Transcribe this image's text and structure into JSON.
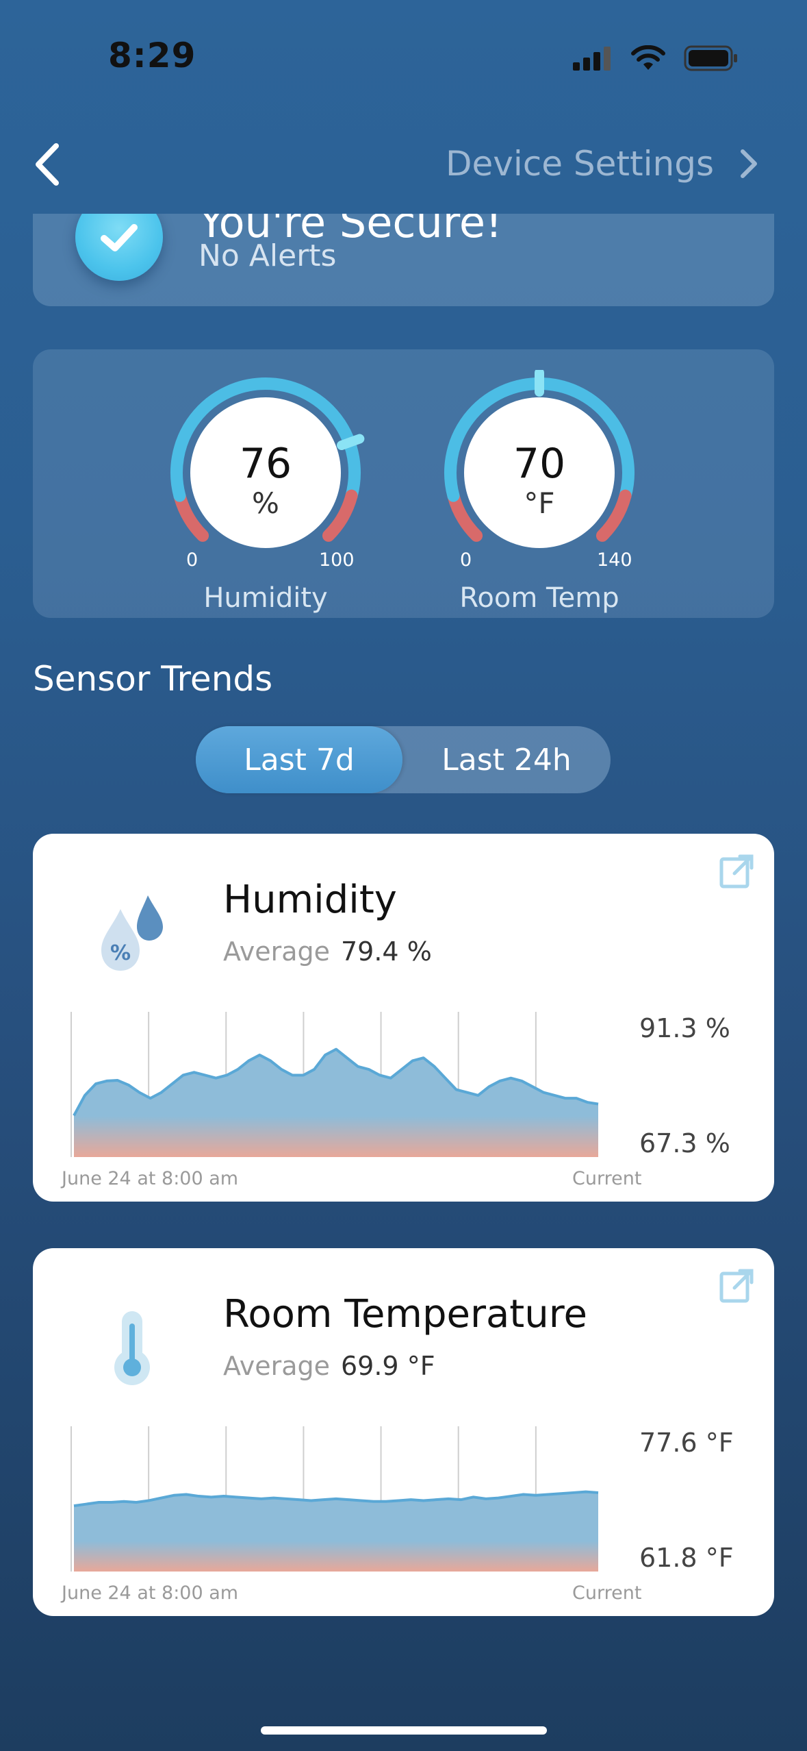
{
  "status_bar": {
    "time": "8:29"
  },
  "nav": {
    "title": "Device Settings"
  },
  "alert_card": {
    "title": "You're Secure!",
    "subtitle": "No Alerts"
  },
  "gauges": [
    {
      "value": "76",
      "unit": "%",
      "min": "0",
      "max": "100",
      "label": "Humidity",
      "fraction": 0.76
    },
    {
      "value": "70",
      "unit": "°F",
      "min": "0",
      "max": "140",
      "label": "Room Temp",
      "fraction": 0.5
    }
  ],
  "trends": {
    "title": "Sensor Trends",
    "tabs": [
      "Last 7d",
      "Last 24h"
    ],
    "selected_tab": "Last 7d"
  },
  "cards": [
    {
      "title": "Humidity",
      "average_label": "Average",
      "average_value": "79.4 %",
      "y_max_label": "91.3 %",
      "y_min_label": "67.3 %",
      "x_start_label": "June 24 at 8:00 am",
      "x_end_label": "Current",
      "icon": "humidity-drop-icon",
      "chart_data": {
        "type": "area",
        "ylim": [
          67.3,
          91.3
        ],
        "values": [
          74.5,
          78,
          80,
          80.5,
          80.6,
          79.8,
          78.5,
          77.5,
          78.5,
          80,
          81.5,
          82,
          81.5,
          81,
          81.5,
          82.5,
          84,
          85,
          84,
          82.5,
          81.5,
          81.5,
          82.5,
          85,
          86,
          84.5,
          83,
          82.5,
          81.5,
          81,
          82.5,
          84,
          84.5,
          83,
          81,
          79,
          78.5,
          78,
          79.5,
          80.5,
          81,
          80.5,
          79.5,
          78.5,
          78,
          77.5,
          77.5,
          76.8,
          76.5
        ]
      }
    },
    {
      "title": "Room Temperature",
      "average_label": "Average",
      "average_value": "69.9 °F",
      "y_max_label": "77.6 °F",
      "y_min_label": "61.8 °F",
      "x_start_label": "June 24 at 8:00 am",
      "x_end_label": "Current",
      "icon": "thermometer-icon",
      "chart_data": {
        "type": "area",
        "ylim": [
          61.8,
          77.6
        ],
        "values": [
          69.3,
          69.5,
          69.7,
          69.7,
          69.8,
          69.7,
          69.9,
          70.2,
          70.5,
          70.6,
          70.4,
          70.3,
          70.4,
          70.3,
          70.2,
          70.1,
          70.2,
          70.1,
          70.0,
          69.9,
          70.0,
          70.1,
          70.0,
          69.9,
          69.8,
          69.8,
          69.9,
          70.0,
          69.9,
          70.0,
          70.1,
          70.0,
          70.3,
          70.1,
          70.2,
          70.4,
          70.6,
          70.5,
          70.6,
          70.7,
          70.8,
          70.9,
          70.8
        ]
      }
    }
  ],
  "colors": {
    "accent": "#4cbde5",
    "gauge_red": "#d86a6a",
    "chart_fill_top": "#8ebcd9",
    "chart_fill_bottom": "#e8a899",
    "chart_line": "#5aa8d6"
  }
}
